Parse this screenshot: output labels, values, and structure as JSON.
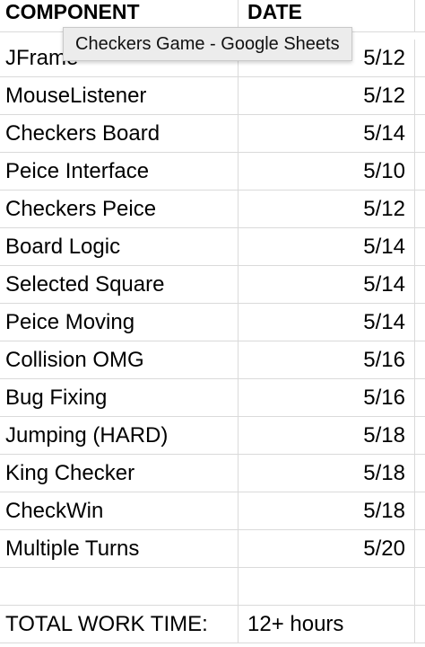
{
  "window": {
    "title": "Checkers Game - Google Sheets"
  },
  "sheet": {
    "headers": [
      "COMPONENT",
      "DATE"
    ],
    "rows": [
      {
        "component": "JFrame",
        "date": "5/12"
      },
      {
        "component": "MouseListener",
        "date": "5/12"
      },
      {
        "component": "Checkers Board",
        "date": "5/14"
      },
      {
        "component": "Peice Interface",
        "date": "5/10"
      },
      {
        "component": "Checkers Peice",
        "date": "5/12"
      },
      {
        "component": "Board Logic",
        "date": "5/14"
      },
      {
        "component": "Selected Square",
        "date": "5/14"
      },
      {
        "component": "Peice Moving",
        "date": "5/14"
      },
      {
        "component": "Collision OMG",
        "date": "5/16"
      },
      {
        "component": "Bug Fixing",
        "date": "5/16"
      },
      {
        "component": "Jumping (HARD)",
        "date": "5/18"
      },
      {
        "component": "King Checker",
        "date": "5/18"
      },
      {
        "component": "CheckWin",
        "date": "5/18"
      },
      {
        "component": "Multiple Turns",
        "date": "5/20"
      }
    ],
    "total": {
      "label": "TOTAL WORK TIME:",
      "value": "12+ hours"
    }
  },
  "colors": {
    "gridline": "#dadada",
    "tooltip_bg": "#ececec"
  }
}
